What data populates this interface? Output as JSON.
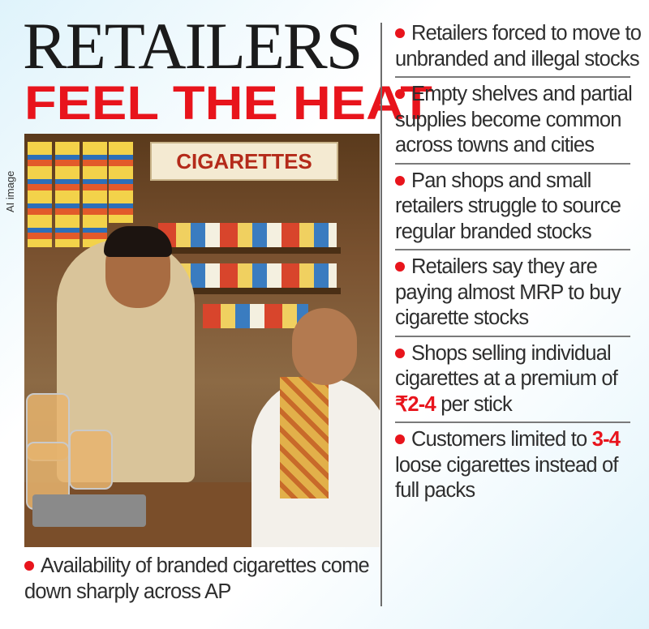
{
  "header": {
    "title_line1": "RETAILERS",
    "title_line2": "FEEL THE HEAT"
  },
  "image": {
    "credit_label": "AI image",
    "shop_sign": "CIGARETTES"
  },
  "caption": {
    "text": "Availability of branded cigarettes come down sharply across AP"
  },
  "points": [
    {
      "text": "Retailers forced to move to unbranded and illegal stocks"
    },
    {
      "text": "Empty shelves and partial supplies become common across towns and cities"
    },
    {
      "text": "Pan shops and small retailers struggle to source regular branded stocks"
    },
    {
      "text": "Retailers say they are paying almost MRP to buy cigarette stocks"
    },
    {
      "pre": "Shops selling individual cigarettes at a premium of",
      "highlight": "₹2-4",
      "post": "per stick"
    },
    {
      "pre": "Customers limited to",
      "highlight": "3-4",
      "post": "loose cigarettes instead of full packs"
    }
  ],
  "colors": {
    "accent_red": "#e8141c",
    "text": "#2e2e2e",
    "background_tint": "#dff3fb"
  },
  "icons": {
    "bullet": "red-dot"
  }
}
